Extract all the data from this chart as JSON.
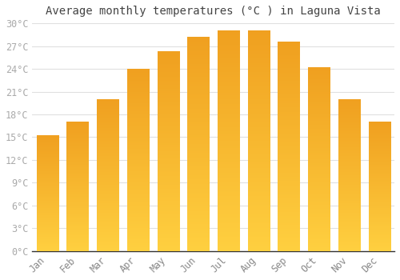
{
  "title": "Average monthly temperatures (°C ) in Laguna Vista",
  "months": [
    "Jan",
    "Feb",
    "Mar",
    "Apr",
    "May",
    "Jun",
    "Jul",
    "Aug",
    "Sep",
    "Oct",
    "Nov",
    "Dec"
  ],
  "values": [
    15.2,
    17.0,
    20.0,
    24.0,
    26.3,
    28.2,
    29.0,
    29.0,
    27.5,
    24.2,
    20.0,
    17.0
  ],
  "bar_color_top": "#F0A020",
  "bar_color_bottom": "#FFD040",
  "ylim": [
    0,
    30
  ],
  "yticks": [
    0,
    3,
    6,
    9,
    12,
    15,
    18,
    21,
    24,
    27,
    30
  ],
  "ytick_labels": [
    "0°C",
    "3°C",
    "6°C",
    "9°C",
    "12°C",
    "15°C",
    "18°C",
    "21°C",
    "24°C",
    "27°C",
    "30°C"
  ],
  "background_color": "#ffffff",
  "grid_color": "#e0e0e0",
  "title_fontsize": 10,
  "tick_fontsize": 8.5
}
